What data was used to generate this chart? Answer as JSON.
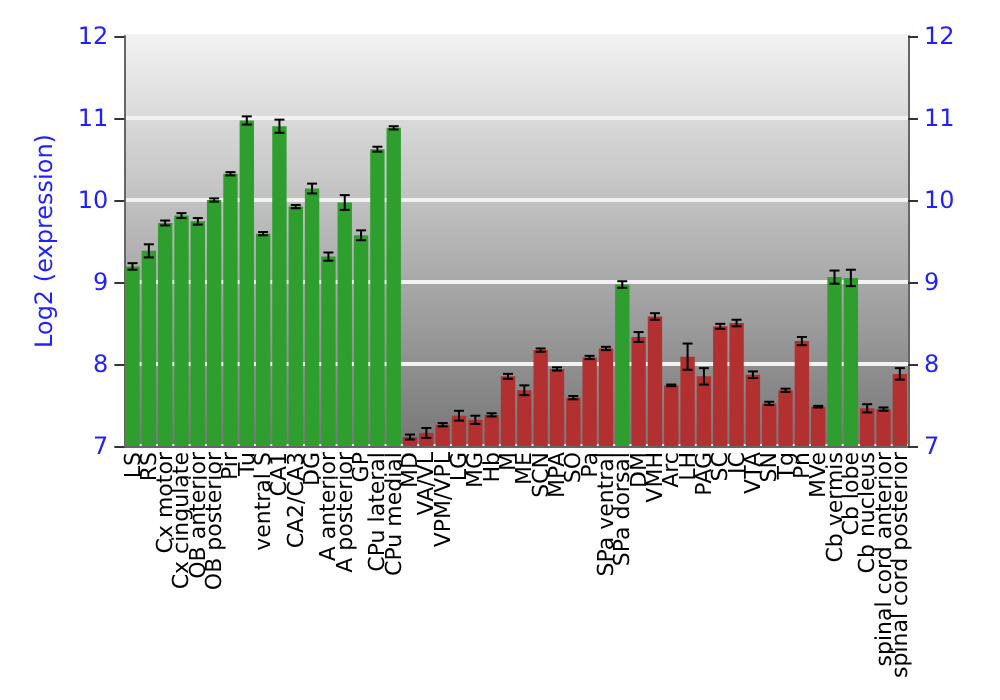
{
  "chart_data": {
    "type": "bar",
    "ylabel": "Log2 (expression)",
    "categories": [
      "LS",
      "RS",
      "Cx motor",
      "Cx cingulate",
      "OB anterior",
      "OB posterior",
      "Pir",
      "Tu",
      "ventral S",
      "CA1",
      "CA2/CA3",
      "DG",
      "A anterior",
      "A posterior",
      "GP",
      "CPu lateral",
      "CPu medial",
      "MD",
      "VA/VL",
      "VPM/VPL",
      "LG",
      "MG",
      "Hb",
      "M",
      "ME",
      "SCN",
      "MPA",
      "SO",
      "Pa",
      "SPa ventral",
      "SPa dorsal",
      "DM",
      "VMH",
      "Arc",
      "LH",
      "PAG",
      "SC",
      "IC",
      "VTA",
      "SN",
      "Tg",
      "Pn",
      "MVe",
      "Cb vermis",
      "Cb lobe",
      "Cb nucleus",
      "spinal cord anterior",
      "spinal cord posterior"
    ],
    "values": [
      9.19,
      9.38,
      9.72,
      9.81,
      9.74,
      10.0,
      10.32,
      10.97,
      9.59,
      10.9,
      9.92,
      10.14,
      9.31,
      9.97,
      9.57,
      10.62,
      10.88,
      7.11,
      7.16,
      7.26,
      7.37,
      7.32,
      7.38,
      7.85,
      7.68,
      8.17,
      7.94,
      7.59,
      8.08,
      8.19,
      8.97,
      8.33,
      8.58,
      7.74,
      8.09,
      7.85,
      8.46,
      8.5,
      7.87,
      7.52,
      7.68,
      8.28,
      7.48,
      9.06,
      9.05,
      7.46,
      7.45,
      7.88
    ],
    "errors": [
      0.04,
      0.08,
      0.03,
      0.03,
      0.04,
      0.02,
      0.02,
      0.05,
      0.02,
      0.08,
      0.02,
      0.06,
      0.05,
      0.09,
      0.06,
      0.03,
      0.02,
      0.03,
      0.06,
      0.02,
      0.06,
      0.05,
      0.02,
      0.03,
      0.06,
      0.02,
      0.02,
      0.02,
      0.02,
      0.02,
      0.04,
      0.06,
      0.04,
      0.01,
      0.16,
      0.1,
      0.03,
      0.04,
      0.04,
      0.02,
      0.02,
      0.05,
      0.01,
      0.08,
      0.1,
      0.05,
      0.02,
      0.07
    ],
    "colors": [
      "#2e9e2e",
      "#2e9e2e",
      "#2e9e2e",
      "#2e9e2e",
      "#2e9e2e",
      "#2e9e2e",
      "#2e9e2e",
      "#2e9e2e",
      "#2e9e2e",
      "#2e9e2e",
      "#2e9e2e",
      "#2e9e2e",
      "#2e9e2e",
      "#2e9e2e",
      "#2e9e2e",
      "#2e9e2e",
      "#2e9e2e",
      "#b23030",
      "#b23030",
      "#b23030",
      "#b23030",
      "#b23030",
      "#b23030",
      "#b23030",
      "#b23030",
      "#b23030",
      "#b23030",
      "#b23030",
      "#b23030",
      "#b23030",
      "#2e9e2e",
      "#b23030",
      "#b23030",
      "#b23030",
      "#b23030",
      "#b23030",
      "#b23030",
      "#b23030",
      "#b23030",
      "#b23030",
      "#b23030",
      "#b23030",
      "#b23030",
      "#2e9e2e",
      "#2e9e2e",
      "#b23030",
      "#b23030",
      "#b23030"
    ],
    "ylim": [
      7,
      12
    ],
    "yticks": [
      7,
      8,
      9,
      10,
      11,
      12
    ],
    "y2lim": [
      7,
      12
    ],
    "y2ticks": [
      7,
      8,
      9,
      10,
      11,
      12
    ],
    "grid": "y"
  }
}
